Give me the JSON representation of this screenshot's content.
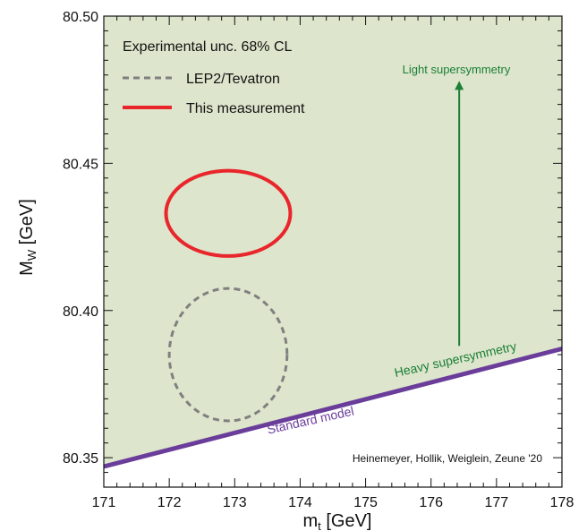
{
  "chart_data": {
    "type": "scatter",
    "xlabel": "m",
    "xlabel_sub": "t",
    "xlabel_unit": " [GeV]",
    "ylabel": "M",
    "ylabel_sub": "W",
    "ylabel_unit": " [GeV]",
    "xlim": [
      171,
      178
    ],
    "ylim": [
      80.34,
      80.5
    ],
    "x_ticks": [
      171,
      172,
      173,
      174,
      175,
      176,
      177,
      178
    ],
    "y_ticks": [
      80.35,
      80.4,
      80.45,
      80.5
    ],
    "y_tick_labels": [
      "80.35",
      "80.40",
      "80.45",
      "80.50"
    ],
    "grid": false,
    "legend": {
      "title": "Experimental unc. 68% CL",
      "placement": "top-left",
      "entries": [
        {
          "label": "LEP2/Tevatron",
          "color": "#808080",
          "style": "dashed"
        },
        {
          "label": "This measurement",
          "color": "#e8262b",
          "style": "solid"
        }
      ]
    },
    "region": {
      "description_color": "#dde5cc",
      "boundary": {
        "label_lower": "Standard model",
        "label_upper": "Heavy supersymmetry",
        "color": "#6a3d9a",
        "points": [
          [
            171,
            80.347
          ],
          [
            178,
            80.387
          ]
        ]
      }
    },
    "arrow": {
      "label": "Light supersymmetry",
      "color": "#1a7f37",
      "x": 176.43,
      "y_from": 80.388,
      "y_to": 80.478
    },
    "ellipses": [
      {
        "name": "LEP2/Tevatron",
        "cx": 172.9,
        "cy": 80.385,
        "rx": 0.9,
        "ry": 0.0225,
        "color": "#808080",
        "style": "dashed"
      },
      {
        "name": "This measurement",
        "cx": 172.9,
        "cy": 80.433,
        "rx": 0.95,
        "ry": 0.0145,
        "color": "#e8262b",
        "style": "solid"
      }
    ],
    "credit": "Heinemeyer, Hollik, Weiglein, Zeune '20"
  }
}
